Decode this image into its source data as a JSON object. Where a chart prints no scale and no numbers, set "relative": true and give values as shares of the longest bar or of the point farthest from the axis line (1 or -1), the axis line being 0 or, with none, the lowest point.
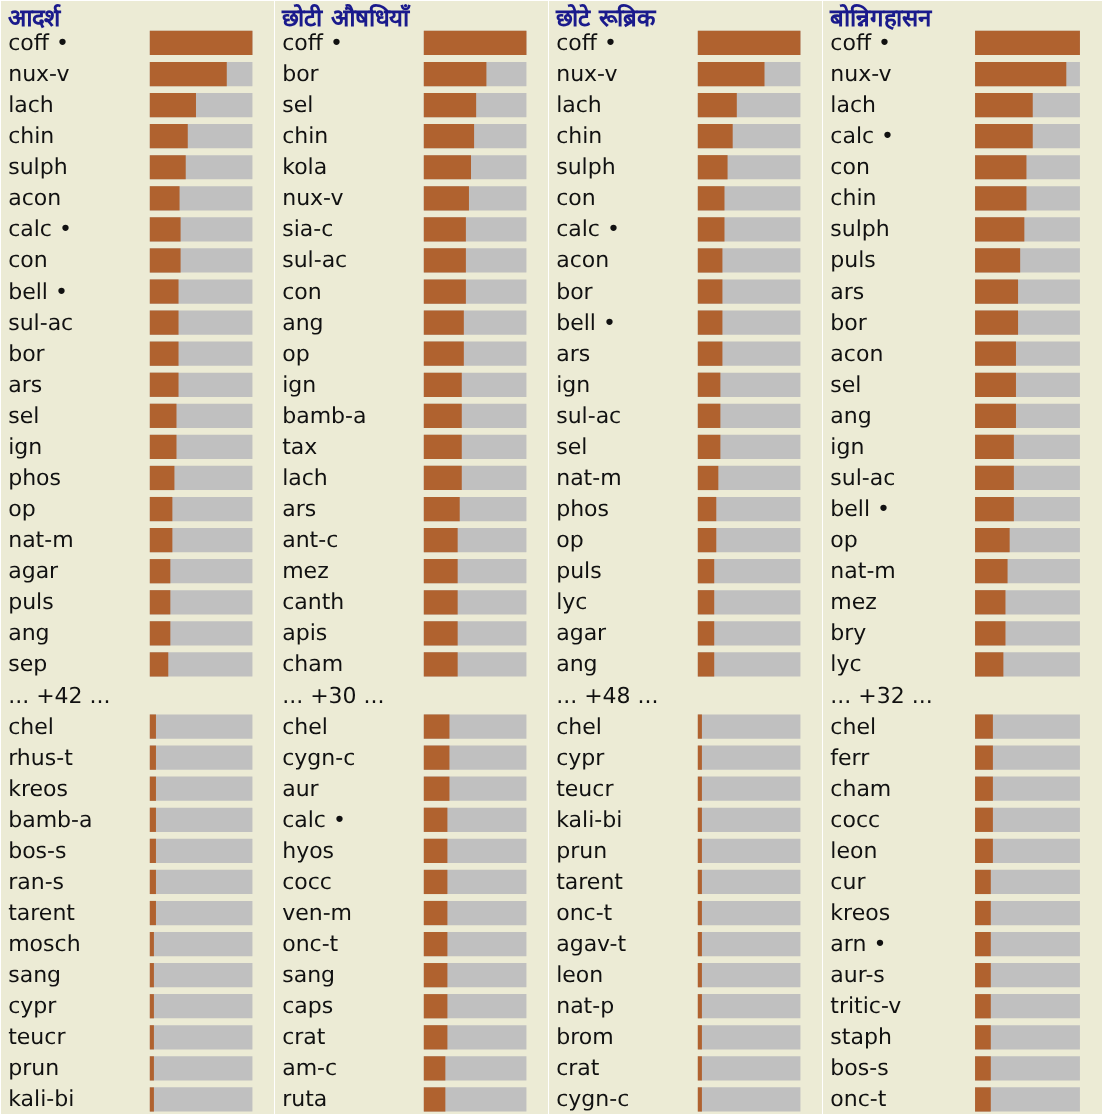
{
  "chart_data": [
    {
      "type": "bar",
      "orientation": "horizontal",
      "relative": true,
      "title": "आदर्श",
      "color": "#b0622f",
      "categories": [
        "coff •",
        "nux-v",
        "lach",
        "chin",
        "sulph",
        "acon",
        "calc •",
        "con",
        "bell •",
        "sul-ac",
        "bor",
        "ars",
        "sel",
        "ign",
        "phos",
        "op",
        "nat-m",
        "agar",
        "puls",
        "ang",
        "sep",
        "... +42 ...",
        "chel",
        "rhus-t",
        "kreos",
        "bamb-a",
        "bos-s",
        "ran-s",
        "tarent",
        "mosch",
        "sang",
        "cypr",
        "teucr",
        "prun",
        "kali-bi"
      ],
      "values": [
        1,
        0.75,
        0.45,
        0.37,
        0.35,
        0.29,
        0.3,
        0.3,
        0.28,
        0.28,
        0.28,
        0.28,
        0.26,
        0.26,
        0.24,
        0.22,
        0.22,
        0.2,
        0.2,
        0.2,
        0.18,
        null,
        0.06,
        0.06,
        0.06,
        0.06,
        0.06,
        0.06,
        0.06,
        0.04,
        0.04,
        0.04,
        0.04,
        0.04,
        0.04
      ]
    },
    {
      "type": "bar",
      "orientation": "horizontal",
      "relative": true,
      "title": "छोटी औषधियाँ",
      "color": "#b0622f",
      "categories": [
        "coff •",
        "bor",
        "sel",
        "chin",
        "kola",
        "nux-v",
        "sia-c",
        "sul-ac",
        "con",
        "ang",
        "op",
        "ign",
        "bamb-a",
        "tax",
        "lach",
        "ars",
        "ant-c",
        "mez",
        "canth",
        "apis",
        "cham",
        "... +30 ...",
        "chel",
        "cygn-c",
        "aur",
        "calc •",
        "hyos",
        "cocc",
        "ven-m",
        "onc-t",
        "sang",
        "caps",
        "crat",
        "am-c",
        "ruta"
      ],
      "values": [
        1,
        0.61,
        0.51,
        0.49,
        0.46,
        0.44,
        0.41,
        0.41,
        0.41,
        0.39,
        0.39,
        0.37,
        0.37,
        0.37,
        0.37,
        0.35,
        0.33,
        0.33,
        0.33,
        0.33,
        0.33,
        null,
        0.25,
        0.25,
        0.25,
        0.23,
        0.23,
        0.23,
        0.23,
        0.23,
        0.23,
        0.23,
        0.23,
        0.21,
        0.21
      ]
    },
    {
      "type": "bar",
      "orientation": "horizontal",
      "relative": true,
      "title": "छोटे रूब्रिक",
      "color": "#b0622f",
      "categories": [
        "coff •",
        "nux-v",
        "lach",
        "chin",
        "sulph",
        "con",
        "calc •",
        "acon",
        "bor",
        "bell •",
        "ars",
        "ign",
        "sul-ac",
        "sel",
        "nat-m",
        "phos",
        "op",
        "puls",
        "lyc",
        "agar",
        "ang",
        "... +48 ...",
        "chel",
        "cypr",
        "teucr",
        "kali-bi",
        "prun",
        "tarent",
        "onc-t",
        "agav-t",
        "leon",
        "nat-p",
        "brom",
        "crat",
        "cygn-c"
      ],
      "values": [
        1,
        0.65,
        0.38,
        0.34,
        0.29,
        0.26,
        0.26,
        0.24,
        0.24,
        0.24,
        0.24,
        0.22,
        0.22,
        0.22,
        0.2,
        0.18,
        0.18,
        0.16,
        0.16,
        0.16,
        0.16,
        null,
        0.04,
        0.04,
        0.04,
        0.04,
        0.04,
        0.04,
        0.04,
        0.04,
        0.04,
        0.04,
        0.04,
        0.04,
        0.04
      ]
    },
    {
      "type": "bar",
      "orientation": "horizontal",
      "relative": true,
      "title": "बोन्निगहासन",
      "color": "#b0622f",
      "categories": [
        "coff •",
        "nux-v",
        "lach",
        "calc •",
        "con",
        "chin",
        "sulph",
        "puls",
        "ars",
        "bor",
        "acon",
        "sel",
        "ang",
        "ign",
        "sul-ac",
        "bell •",
        "op",
        "nat-m",
        "mez",
        "bry",
        "lyc",
        "... +32 ...",
        "chel",
        "ferr",
        "cham",
        "cocc",
        "leon",
        "cur",
        "kreos",
        "arn •",
        "aur-s",
        "tritic-v",
        "staph",
        "bos-s",
        "onc-t"
      ],
      "values": [
        1,
        0.87,
        0.55,
        0.55,
        0.49,
        0.49,
        0.47,
        0.43,
        0.41,
        0.41,
        0.39,
        0.39,
        0.39,
        0.37,
        0.37,
        0.37,
        0.33,
        0.31,
        0.29,
        0.29,
        0.27,
        null,
        0.17,
        0.17,
        0.17,
        0.17,
        0.17,
        0.15,
        0.15,
        0.15,
        0.15,
        0.15,
        0.15,
        0.15,
        0.15
      ]
    }
  ]
}
